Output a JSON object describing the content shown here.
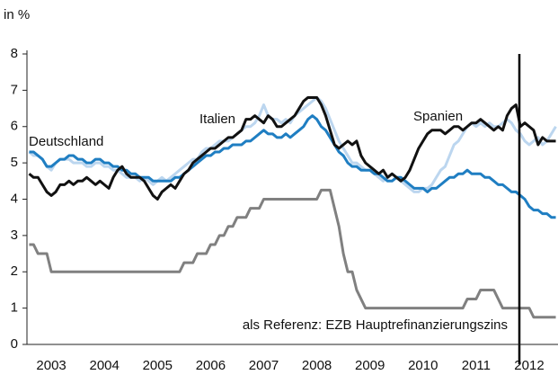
{
  "chart_data": {
    "type": "line",
    "ylabel": "in %",
    "categories": [
      null,
      null,
      null,
      null,
      null,
      "2003",
      null,
      null,
      null,
      null,
      null,
      null,
      null,
      null,
      null,
      null,
      null,
      "2004",
      null,
      null,
      null,
      null,
      null,
      null,
      null,
      null,
      null,
      null,
      null,
      "2005",
      null,
      null,
      null,
      null,
      null,
      null,
      null,
      null,
      null,
      null,
      null,
      "2006",
      null,
      null,
      null,
      null,
      null,
      null,
      null,
      null,
      null,
      null,
      null,
      "2007",
      null,
      null,
      null,
      null,
      null,
      null,
      null,
      null,
      null,
      null,
      null,
      "2008",
      null,
      null,
      null,
      null,
      null,
      null,
      null,
      null,
      null,
      null,
      null,
      "2009",
      null,
      null,
      null,
      null,
      null,
      null,
      null,
      null,
      null,
      null,
      null,
      "2010",
      null,
      null,
      null,
      null,
      null,
      null,
      null,
      null,
      null,
      null,
      null,
      "2011",
      null,
      null,
      null,
      null,
      null,
      null,
      null,
      null,
      null,
      null,
      null,
      "2012",
      null,
      null,
      null,
      null,
      null,
      null
    ],
    "ylim": [
      0,
      8
    ],
    "yticks": [
      0,
      1,
      2,
      3,
      4,
      5,
      6,
      7,
      8
    ],
    "series": [
      {
        "name": "Deutschland",
        "color": "#1f7ec2",
        "values": [
          5.3,
          5.3,
          5.2,
          5.1,
          4.9,
          4.9,
          5.0,
          5.1,
          5.1,
          5.2,
          5.2,
          5.1,
          5.1,
          5.0,
          5.0,
          5.1,
          5.1,
          5.0,
          5.0,
          4.9,
          4.9,
          4.8,
          4.8,
          4.7,
          4.7,
          4.6,
          4.6,
          4.6,
          4.5,
          4.5,
          4.5,
          4.5,
          4.5,
          4.6,
          4.6,
          4.7,
          4.8,
          4.9,
          5.0,
          5.1,
          5.2,
          5.2,
          5.3,
          5.3,
          5.4,
          5.4,
          5.5,
          5.5,
          5.5,
          5.6,
          5.6,
          5.7,
          5.8,
          5.9,
          5.8,
          5.8,
          5.7,
          5.7,
          5.8,
          5.7,
          5.8,
          5.9,
          6.0,
          6.2,
          6.3,
          6.2,
          6.0,
          5.9,
          5.7,
          5.5,
          5.3,
          5.2,
          5.0,
          4.9,
          4.9,
          4.8,
          4.8,
          4.8,
          4.7,
          4.7,
          4.6,
          4.5,
          4.5,
          4.6,
          4.6,
          4.5,
          4.4,
          4.3,
          4.3,
          4.3,
          4.2,
          4.3,
          4.3,
          4.4,
          4.5,
          4.6,
          4.6,
          4.7,
          4.7,
          4.8,
          4.7,
          4.7,
          4.7,
          4.6,
          4.6,
          4.5,
          4.4,
          4.4,
          4.3,
          4.2,
          4.2,
          4.1,
          4.0,
          3.8,
          3.7,
          3.7,
          3.6,
          3.6,
          3.5,
          3.5
        ]
      },
      {
        "name": "Italien",
        "color": "#bcd6ef",
        "values": [
          5.3,
          5.2,
          5.2,
          5.1,
          4.9,
          4.8,
          5.0,
          5.1,
          5.1,
          5.1,
          5.0,
          5.0,
          5.0,
          4.9,
          4.9,
          5.0,
          5.0,
          4.9,
          4.9,
          4.8,
          4.8,
          4.7,
          4.6,
          4.6,
          4.6,
          4.5,
          4.6,
          4.5,
          4.4,
          4.5,
          4.6,
          4.5,
          4.6,
          4.7,
          4.8,
          4.9,
          5.0,
          5.1,
          5.1,
          5.3,
          5.4,
          5.4,
          5.5,
          5.6,
          5.6,
          5.6,
          5.7,
          5.8,
          5.9,
          6.0,
          6.0,
          6.1,
          6.3,
          6.6,
          6.3,
          6.2,
          6.2,
          6.1,
          6.2,
          6.1,
          6.3,
          6.4,
          6.5,
          6.6,
          6.7,
          6.8,
          6.7,
          6.5,
          6.2,
          5.9,
          5.6,
          5.4,
          5.2,
          5.0,
          5.0,
          4.9,
          4.8,
          4.8,
          4.7,
          4.6,
          4.5,
          4.6,
          4.7,
          4.6,
          4.5,
          4.4,
          4.3,
          4.2,
          4.2,
          4.3,
          4.3,
          4.4,
          4.6,
          4.8,
          4.9,
          5.2,
          5.5,
          5.6,
          5.8,
          6.0,
          6.1,
          6.0,
          6.1,
          6.0,
          6.1,
          6.0,
          6.0,
          6.1,
          6.2,
          6.1,
          5.9,
          5.8,
          5.6,
          5.5,
          5.6,
          5.7,
          5.5,
          5.6,
          5.8,
          6.0
        ]
      },
      {
        "name": "Spanien",
        "color": "#111111",
        "values": [
          4.7,
          4.6,
          4.6,
          4.4,
          4.2,
          4.1,
          4.2,
          4.4,
          4.4,
          4.5,
          4.4,
          4.5,
          4.5,
          4.6,
          4.5,
          4.4,
          4.5,
          4.4,
          4.3,
          4.6,
          4.8,
          4.9,
          4.7,
          4.6,
          4.6,
          4.6,
          4.5,
          4.3,
          4.1,
          4.0,
          4.2,
          4.3,
          4.4,
          4.3,
          4.5,
          4.7,
          4.8,
          5.0,
          5.1,
          5.2,
          5.3,
          5.4,
          5.4,
          5.5,
          5.6,
          5.7,
          5.7,
          5.8,
          5.9,
          6.2,
          6.2,
          6.3,
          6.2,
          6.1,
          6.3,
          6.2,
          6.0,
          6.0,
          6.1,
          6.2,
          6.3,
          6.5,
          6.7,
          6.8,
          6.8,
          6.8,
          6.6,
          6.3,
          5.9,
          5.5,
          5.4,
          5.5,
          5.6,
          5.5,
          5.6,
          5.2,
          5.0,
          4.9,
          4.8,
          4.7,
          4.8,
          4.6,
          4.7,
          4.6,
          4.5,
          4.6,
          4.8,
          5.1,
          5.4,
          5.6,
          5.8,
          5.9,
          5.9,
          5.9,
          5.8,
          5.9,
          6.0,
          6.0,
          5.9,
          6.0,
          6.1,
          6.1,
          6.2,
          6.1,
          6.0,
          5.9,
          6.0,
          5.9,
          6.3,
          6.5,
          6.6,
          6.0,
          6.1,
          6.0,
          5.9,
          5.5,
          5.7,
          5.6,
          5.6,
          5.6
        ]
      },
      {
        "name": "als Referenz: EZB Hauptrefinanzierungszins",
        "color": "#808080",
        "values": [
          2.75,
          2.75,
          2.5,
          2.5,
          2.5,
          2,
          2,
          2,
          2,
          2,
          2,
          2,
          2,
          2,
          2,
          2,
          2,
          2,
          2,
          2,
          2,
          2,
          2,
          2,
          2,
          2,
          2,
          2,
          2,
          2,
          2,
          2,
          2,
          2,
          2,
          2.25,
          2.25,
          2.25,
          2.5,
          2.5,
          2.5,
          2.75,
          2.75,
          3,
          3,
          3.25,
          3.25,
          3.5,
          3.5,
          3.5,
          3.75,
          3.75,
          3.75,
          4,
          4,
          4,
          4,
          4,
          4,
          4,
          4,
          4,
          4,
          4,
          4,
          4,
          4.25,
          4.25,
          4.25,
          3.75,
          3.25,
          2.5,
          2,
          2,
          1.5,
          1.25,
          1,
          1,
          1,
          1,
          1,
          1,
          1,
          1,
          1,
          1,
          1,
          1,
          1,
          1,
          1,
          1,
          1,
          1,
          1,
          1,
          1,
          1,
          1,
          1.25,
          1.25,
          1.25,
          1.5,
          1.5,
          1.5,
          1.5,
          1.25,
          1,
          1,
          1,
          1,
          1,
          1,
          1,
          0.75,
          0.75,
          0.75,
          0.75,
          0.75,
          0.75
        ]
      }
    ]
  }
}
